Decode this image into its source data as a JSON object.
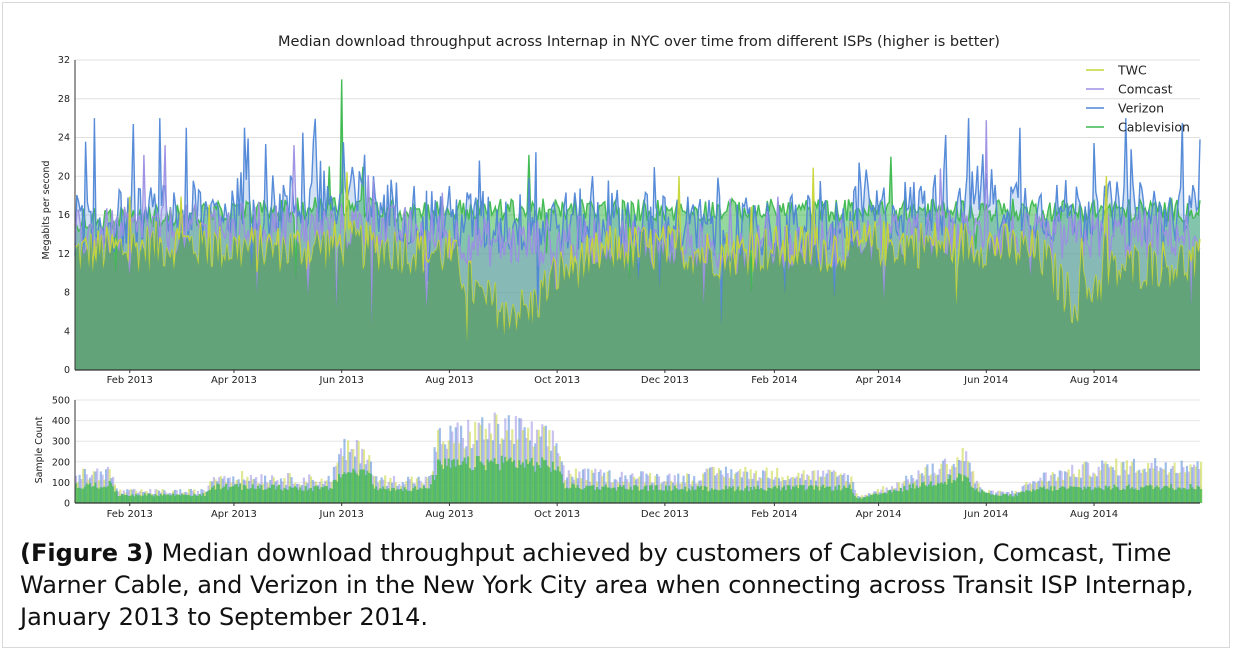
{
  "chart_data": [
    {
      "type": "area",
      "title": "Median download throughput across Internap in NYC over time from different ISPs (higher is better)",
      "ylabel": "Megabits per second",
      "xlabel": "",
      "ylim": [
        0,
        32
      ],
      "yticks": [
        "0",
        "4",
        "8",
        "12",
        "16",
        "20",
        "24",
        "28",
        "32"
      ],
      "xlim": [
        "2013-01-01",
        "2014-09-30"
      ],
      "xticks": [
        {
          "date": "2013-02-01",
          "label": "Feb 2013"
        },
        {
          "date": "2013-04-01",
          "label": "Apr 2013"
        },
        {
          "date": "2013-06-01",
          "label": "Jun 2013"
        },
        {
          "date": "2013-08-01",
          "label": "Aug 2013"
        },
        {
          "date": "2013-10-01",
          "label": "Oct 2013"
        },
        {
          "date": "2013-12-01",
          "label": "Dec 2013"
        },
        {
          "date": "2014-02-01",
          "label": "Feb 2014"
        },
        {
          "date": "2014-04-01",
          "label": "Apr 2014"
        },
        {
          "date": "2014-06-01",
          "label": "Jun 2014"
        },
        {
          "date": "2014-08-01",
          "label": "Aug 2014"
        }
      ],
      "grid": true,
      "legend_position": "top-right",
      "series": [
        {
          "name": "TWC",
          "color": "#c6d636",
          "dates": [
            "2013-01-01",
            "2013-02-01",
            "2013-03-01",
            "2013-04-01",
            "2013-05-01",
            "2013-06-01",
            "2013-07-01",
            "2013-08-01",
            "2013-08-20",
            "2013-09-15",
            "2013-10-01",
            "2013-11-01",
            "2013-12-01",
            "2014-01-01",
            "2014-02-01",
            "2014-03-01",
            "2014-04-01",
            "2014-05-01",
            "2014-06-01",
            "2014-07-01",
            "2014-07-20",
            "2014-08-10",
            "2014-09-01",
            "2014-09-30"
          ],
          "values": [
            12,
            12.5,
            13,
            12.5,
            12.5,
            13,
            12.5,
            12,
            7,
            6,
            10,
            12.5,
            12.5,
            12,
            12.5,
            12.5,
            13,
            13,
            13,
            12,
            7,
            10,
            11,
            11
          ]
        },
        {
          "name": "Comcast",
          "color": "#9b8fe3",
          "dates": [
            "2013-01-01",
            "2013-03-01",
            "2013-05-01",
            "2013-07-01",
            "2013-09-01",
            "2013-11-01",
            "2014-01-01",
            "2014-03-01",
            "2014-05-01",
            "2014-06-01",
            "2014-07-01",
            "2014-09-01",
            "2014-09-30"
          ],
          "values": [
            14,
            14.5,
            15,
            14.5,
            13,
            13.5,
            12.5,
            13,
            14,
            14,
            13.5,
            14,
            14
          ]
        },
        {
          "name": "Verizon",
          "color": "#4f86d6",
          "dates": [
            "2013-01-01",
            "2013-03-01",
            "2013-05-01",
            "2013-06-01",
            "2013-07-01",
            "2013-09-01",
            "2013-11-01",
            "2014-01-01",
            "2014-03-01",
            "2014-05-01",
            "2014-06-01",
            "2014-07-01",
            "2014-09-01",
            "2014-09-30"
          ],
          "values": [
            15,
            16,
            17,
            18,
            16.5,
            15,
            15.5,
            14.5,
            15,
            17,
            18,
            16.5,
            16,
            16
          ]
        },
        {
          "name": "Cablevision",
          "color": "#3db84e",
          "dates": [
            "2013-01-01",
            "2013-03-01",
            "2013-05-01",
            "2013-06-01",
            "2013-07-01",
            "2013-09-01",
            "2013-11-01",
            "2014-01-01",
            "2014-03-01",
            "2014-05-01",
            "2014-07-01",
            "2014-09-01",
            "2014-09-30"
          ],
          "values": [
            15.5,
            16,
            16.5,
            17,
            16.5,
            16.5,
            16.5,
            16.5,
            16.5,
            16.5,
            16.5,
            16.5,
            16.5
          ]
        }
      ],
      "peaks": [
        {
          "series": "Cablevision",
          "date": "2013-06-01",
          "value": 30
        },
        {
          "series": "Comcast",
          "date": "2014-06-01",
          "value": 25.8
        },
        {
          "series": "Verizon",
          "date": "2013-03-05",
          "value": 25
        },
        {
          "series": "Verizon",
          "date": "2013-05-10",
          "value": 24.5
        },
        {
          "series": "Verizon",
          "date": "2014-06-20",
          "value": 25
        },
        {
          "series": "Verizon",
          "date": "2014-09-30",
          "value": 23.8
        },
        {
          "series": "Cablevision",
          "date": "2013-09-15",
          "value": 22.2
        }
      ]
    },
    {
      "type": "area",
      "title": "",
      "ylabel": "Sample Count",
      "ylim": [
        0,
        500
      ],
      "yticks": [
        "0",
        "100",
        "200",
        "300",
        "400",
        "500"
      ],
      "grid": true,
      "series_names": [
        "TWC",
        "Comcast",
        "Verizon",
        "Cablevision"
      ],
      "total_dates": [
        "2013-01-01",
        "2013-01-20",
        "2013-01-25",
        "2013-03-15",
        "2013-03-20",
        "2013-05-25",
        "2013-06-01",
        "2013-06-15",
        "2013-06-20",
        "2013-07-20",
        "2013-07-25",
        "2013-08-20",
        "2013-09-01",
        "2013-09-30",
        "2013-10-05",
        "2013-11-01",
        "2013-12-15",
        "2014-01-01",
        "2014-02-01",
        "2014-03-15",
        "2014-03-20",
        "2014-04-15",
        "2014-04-20",
        "2014-05-15",
        "2014-05-20",
        "2014-05-25",
        "2014-06-01",
        "2014-06-15",
        "2014-07-01",
        "2014-08-01",
        "2014-09-30"
      ],
      "total_values": [
        130,
        150,
        55,
        55,
        130,
        110,
        250,
        250,
        110,
        110,
        300,
        350,
        360,
        290,
        140,
        130,
        120,
        150,
        140,
        130,
        30,
        100,
        130,
        200,
        250,
        100,
        50,
        50,
        120,
        170,
        190
      ],
      "green_dates": [
        "2013-01-01",
        "2013-01-20",
        "2013-01-25",
        "2013-03-15",
        "2013-03-20",
        "2013-05-25",
        "2013-06-01",
        "2013-06-15",
        "2013-06-20",
        "2013-07-20",
        "2013-07-25",
        "2013-09-01",
        "2013-09-30",
        "2013-10-05",
        "2013-12-15",
        "2014-03-15",
        "2014-03-20",
        "2014-04-20",
        "2014-05-20",
        "2014-05-25",
        "2014-06-15",
        "2014-07-01",
        "2014-09-30"
      ],
      "green_values": [
        80,
        90,
        40,
        40,
        80,
        70,
        150,
        150,
        70,
        70,
        180,
        200,
        180,
        80,
        70,
        75,
        20,
        80,
        130,
        60,
        35,
        70,
        80
      ]
    }
  ],
  "caption": {
    "label": "(Figure 3)",
    "text": " Median download throughput achieved by customers of Cablevision, Comcast, Time Warner Cable, and Verizon in the New York City area when connecting across Transit ISP Internap, January 2013 to September 2014."
  }
}
